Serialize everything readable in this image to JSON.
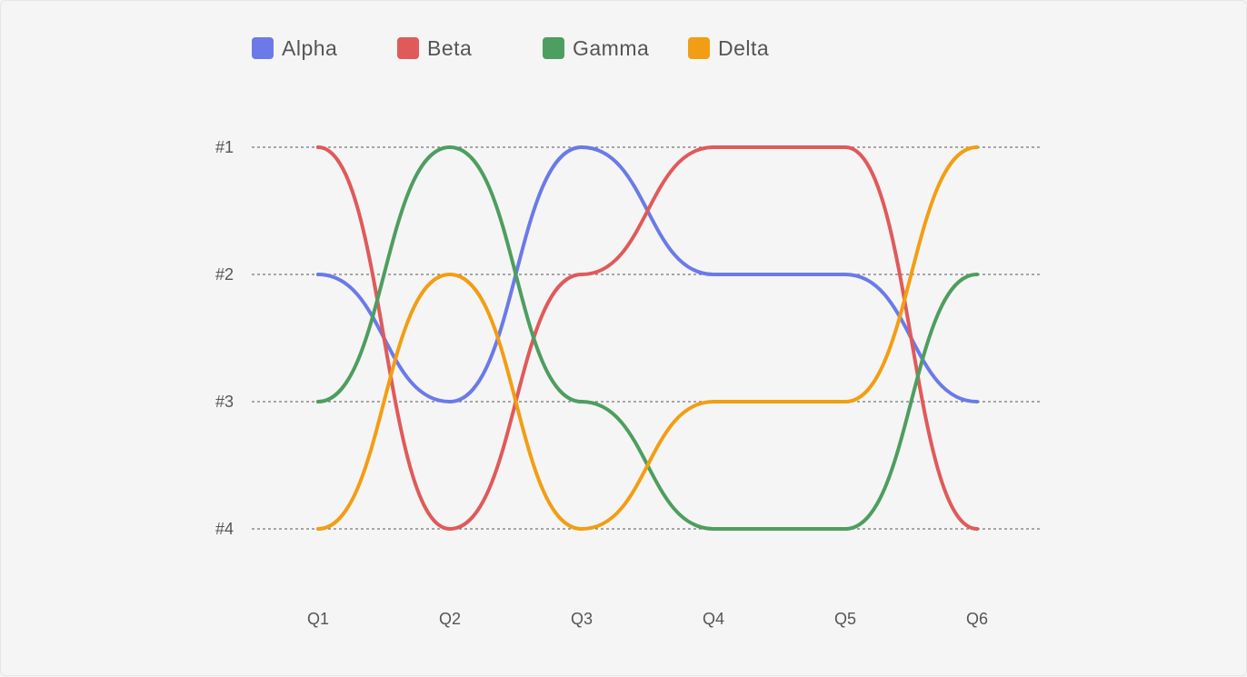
{
  "chart_data": {
    "type": "line",
    "title": "",
    "xlabel": "",
    "ylabel": "",
    "categories": [
      "Q1",
      "Q2",
      "Q3",
      "Q4",
      "Q5",
      "Q6"
    ],
    "y_tick_labels": [
      "#1",
      "#2",
      "#3",
      "#4"
    ],
    "ylim": [
      1,
      4
    ],
    "y_inverted": true,
    "grid": "horizontal dashed",
    "legend_position": "top-left",
    "series": [
      {
        "name": "Alpha",
        "color": "#6b7ae8",
        "values": [
          2,
          3,
          1,
          2,
          2,
          3
        ]
      },
      {
        "name": "Beta",
        "color": "#e05a5a",
        "values": [
          1,
          4,
          2,
          1,
          1,
          4
        ]
      },
      {
        "name": "Gamma",
        "color": "#4e9e5f",
        "values": [
          3,
          1,
          3,
          4,
          4,
          2
        ]
      },
      {
        "name": "Delta",
        "color": "#f29e14",
        "values": [
          4,
          2,
          4,
          3,
          3,
          1
        ]
      }
    ]
  }
}
